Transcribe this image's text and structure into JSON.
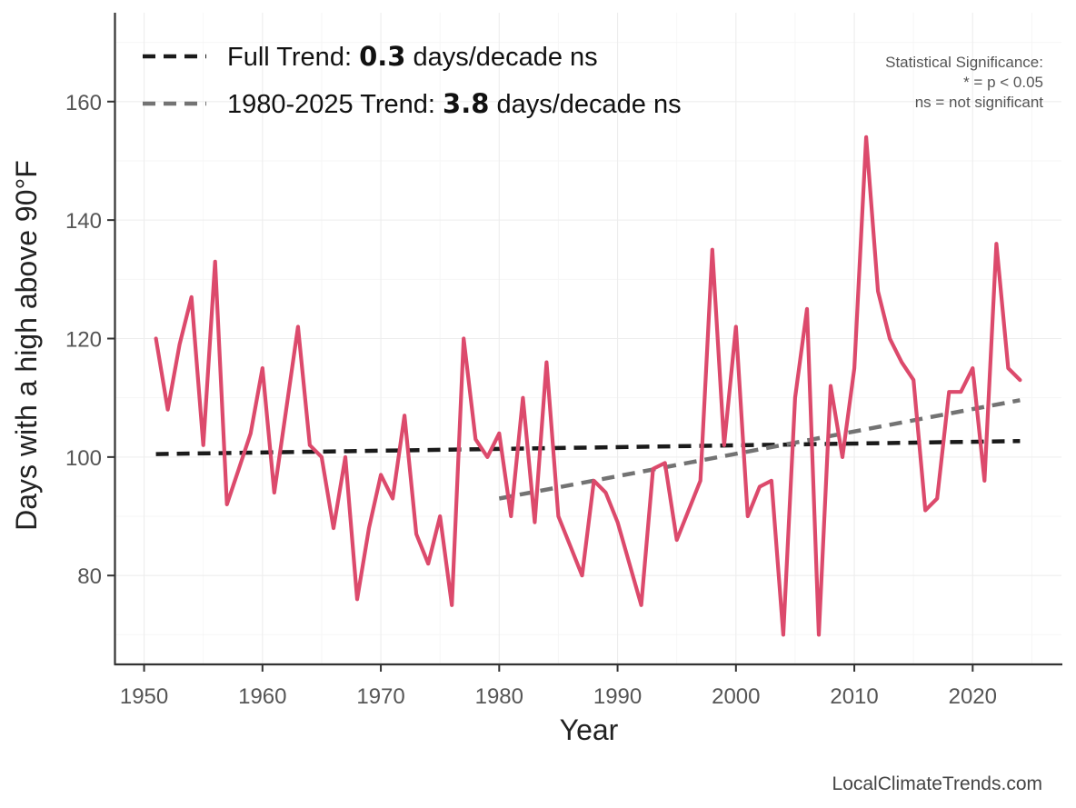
{
  "chart_data": {
    "type": "line",
    "title": "",
    "xlabel": "Year",
    "ylabel": "Days with a high above 90°F",
    "xlim": [
      1947.5,
      2027.5
    ],
    "ylim": [
      65,
      175
    ],
    "xticks": [
      1950,
      1960,
      1970,
      1980,
      1990,
      2000,
      2010,
      2020
    ],
    "yticks": [
      80,
      100,
      120,
      140,
      160
    ],
    "grid": true,
    "legend_position": "top-left",
    "series": [
      {
        "name": "Days with a high above 90°F",
        "color": "#dc4a6c",
        "x": [
          1951,
          1952,
          1953,
          1954,
          1955,
          1956,
          1957,
          1958,
          1959,
          1960,
          1961,
          1962,
          1963,
          1964,
          1965,
          1966,
          1967,
          1968,
          1969,
          1970,
          1971,
          1972,
          1973,
          1974,
          1975,
          1976,
          1977,
          1978,
          1979,
          1980,
          1981,
          1982,
          1983,
          1984,
          1985,
          1986,
          1987,
          1988,
          1989,
          1990,
          1991,
          1992,
          1993,
          1994,
          1995,
          1996,
          1997,
          1998,
          1999,
          2000,
          2001,
          2002,
          2003,
          2004,
          2005,
          2006,
          2007,
          2008,
          2009,
          2010,
          2011,
          2012,
          2013,
          2014,
          2015,
          2016,
          2017,
          2018,
          2019,
          2020,
          2021,
          2022,
          2023,
          2024
        ],
        "values": [
          120,
          108,
          119,
          127,
          102,
          133,
          92,
          98,
          104,
          115,
          94,
          108,
          122,
          102,
          100,
          88,
          100,
          76,
          88,
          97,
          93,
          107,
          87,
          82,
          90,
          75,
          120,
          103,
          100,
          104,
          90,
          110,
          89,
          116,
          90,
          85,
          80,
          96,
          94,
          89,
          82,
          75,
          98,
          99,
          86,
          91,
          96,
          135,
          102,
          122,
          90,
          95,
          96,
          70,
          110,
          125,
          70,
          112,
          100,
          115,
          154,
          128,
          120,
          116,
          113,
          91,
          93,
          111,
          111,
          115,
          96,
          136,
          115,
          113
        ]
      }
    ],
    "trends": [
      {
        "name": "Full Trend",
        "color": "#1a1a1a",
        "x": [
          1951,
          2024
        ],
        "y": [
          100.5,
          102.7
        ],
        "label_prefix": "Full Trend: ",
        "label_value": "0.3",
        "label_suffix": " days/decade ns"
      },
      {
        "name": "1980-2025 Trend",
        "color": "#737373",
        "x": [
          1980,
          2024
        ],
        "y": [
          93.0,
          109.6
        ],
        "label_prefix": "1980-2025 Trend: ",
        "label_value": "3.8",
        "label_suffix": " days/decade ns"
      }
    ],
    "significance_note": [
      "Statistical Significance:",
      "* = p < 0.05",
      "ns = not significant"
    ],
    "source": "LocalClimateTrends.com"
  }
}
